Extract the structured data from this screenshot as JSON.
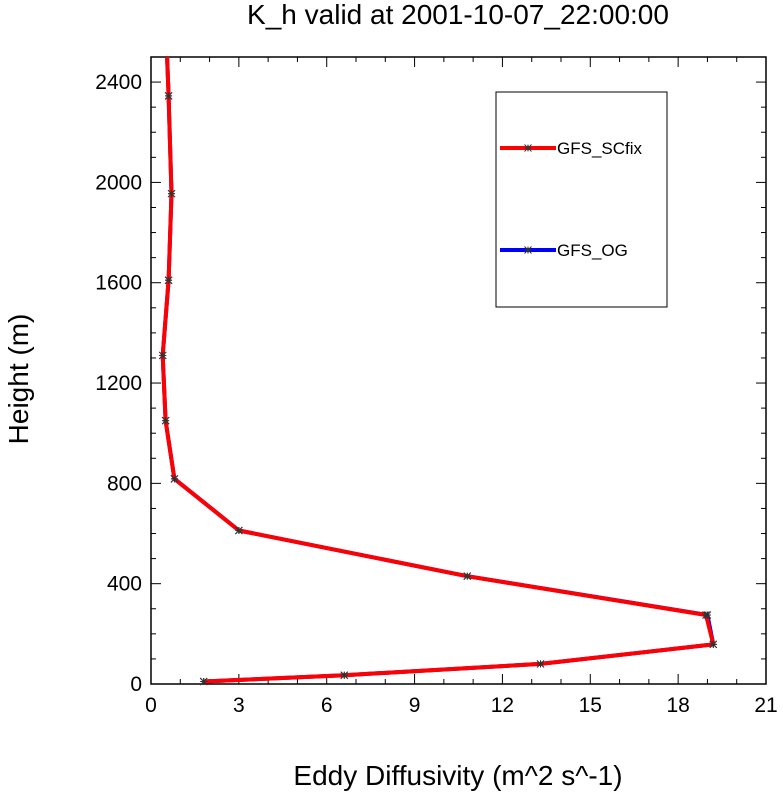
{
  "chart_data": {
    "type": "line",
    "title": "K_h valid at 2001-10-07_22:00:00",
    "xlabel": "Eddy Diffusivity (m^2 s^-1)",
    "ylabel": "Height (m)",
    "xlim": [
      0,
      21
    ],
    "ylim": [
      0,
      2500
    ],
    "xticks": [
      "0",
      "3",
      "6",
      "9",
      "12",
      "15",
      "18",
      "21"
    ],
    "yticks": [
      "0",
      "400",
      "800",
      "1200",
      "1600",
      "2000",
      "2400"
    ],
    "legend_position": "top-right",
    "series": [
      {
        "name": "GFS_OG",
        "color": "#0000ff",
        "marker": "asterisk",
        "points": [
          [
            1.8,
            10
          ],
          [
            6.6,
            35
          ],
          [
            13.3,
            80
          ],
          [
            19.2,
            158
          ],
          [
            19.0,
            275
          ],
          [
            10.8,
            430
          ],
          [
            3.0,
            612
          ],
          [
            0.8,
            818
          ],
          [
            0.5,
            1050
          ],
          [
            0.4,
            1310
          ],
          [
            0.6,
            1610
          ],
          [
            0.7,
            1955
          ],
          [
            0.6,
            2345
          ],
          [
            0.55,
            2500
          ]
        ]
      },
      {
        "name": "GFS_SCfix",
        "color": "#ff0000",
        "marker": "asterisk",
        "points": [
          [
            1.8,
            10
          ],
          [
            6.6,
            35
          ],
          [
            13.3,
            80
          ],
          [
            19.2,
            158
          ],
          [
            18.95,
            275
          ],
          [
            10.8,
            430
          ],
          [
            3.0,
            612
          ],
          [
            0.8,
            818
          ],
          [
            0.5,
            1050
          ],
          [
            0.4,
            1310
          ],
          [
            0.6,
            1610
          ],
          [
            0.7,
            1955
          ],
          [
            0.6,
            2345
          ],
          [
            0.55,
            2500
          ]
        ]
      }
    ],
    "legend_order": [
      "GFS_SCfix",
      "GFS_OG"
    ],
    "marker_color": "#333333"
  }
}
